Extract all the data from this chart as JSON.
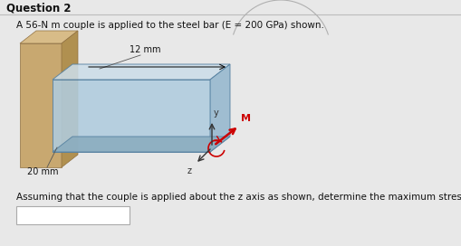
{
  "title": "Question 2",
  "problem_text": "A 56-N m couple is applied to the steel bar (E = 200 GPa) shown.",
  "dim1": "12 mm",
  "dim2": "20 mm",
  "axis_label_y": "y",
  "axis_label_z": "z",
  "axis_label_M": "M",
  "bottom_text": "Assuming that the couple is applied about the z axis as shown, determine the maximum stress",
  "bg_color": "#e8e8e8",
  "bar_color_front": "#b0ccde",
  "bar_color_side_right": "#95b8ce",
  "bar_color_top": "#ccdde8",
  "bar_color_bottom": "#8aacbe",
  "wall_color_front": "#c8a870",
  "wall_color_side": "#b09050",
  "wall_color_top": "#d8bc88",
  "answer_box_color": "#ffffff",
  "moment_arrow_color": "#cc0000"
}
